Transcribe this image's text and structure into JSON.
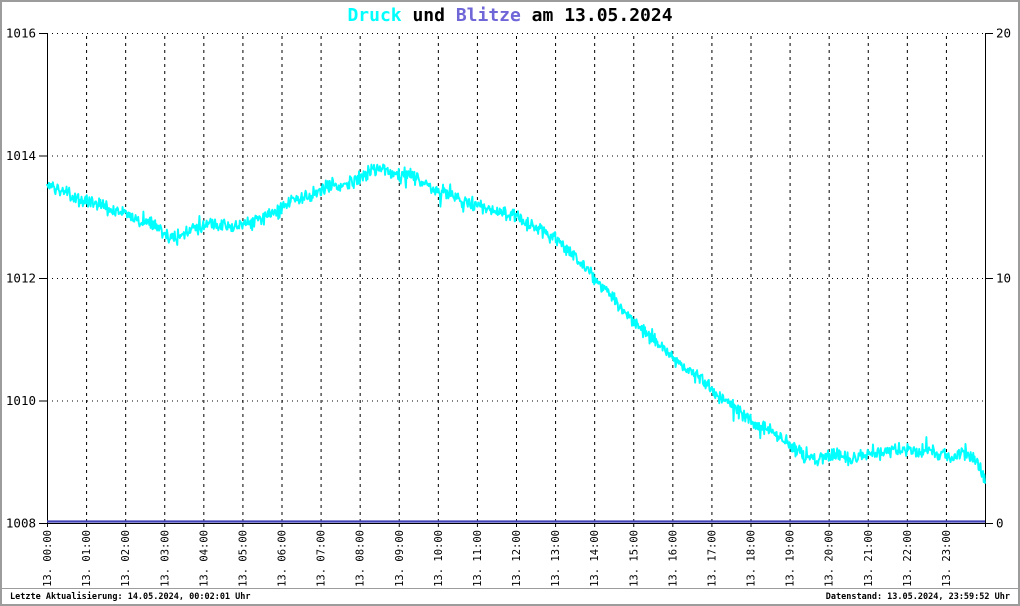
{
  "title": {
    "parts": [
      {
        "text": "Druck",
        "color": "#00ffff"
      },
      {
        "text": " und ",
        "color": "#000000"
      },
      {
        "text": "Blitze",
        "color": "#6f66d8"
      },
      {
        "text": " am 13.05.2024",
        "color": "#000000"
      }
    ]
  },
  "footer": {
    "left": "Letzte Aktualisierung: 14.05.2024, 00:02:01 Uhr",
    "right": "Datenstand: 13.05.2024, 23:59:52 Uhr"
  },
  "colors": {
    "druck_line": "#00ffff",
    "blitze_line": "#4343b8",
    "axis": "#000000",
    "frame_border": "#9c9c9c"
  },
  "chart_data": {
    "type": "line",
    "title": "Druck und Blitze am 13.05.2024",
    "left_axis": {
      "range": [
        1008,
        1016
      ],
      "ticks": [
        1008,
        1010,
        1012,
        1014,
        1016
      ]
    },
    "right_axis": {
      "range": [
        0,
        20
      ],
      "ticks": [
        0,
        10,
        20
      ]
    },
    "x_axis": {
      "hours_span": [
        0,
        24
      ],
      "tick_labels": [
        "13. 00:00",
        "13. 01:00",
        "13. 02:00",
        "13. 03:00",
        "13. 04:00",
        "13. 05:00",
        "13. 06:00",
        "13. 07:00",
        "13. 08:00",
        "13. 09:00",
        "13. 10:00",
        "13. 11:00",
        "13. 12:00",
        "13. 13:00",
        "13. 14:00",
        "13. 15:00",
        "13. 16:00",
        "13. 17:00",
        "13. 18:00",
        "13. 19:00",
        "13. 20:00",
        "13. 21:00",
        "13. 22:00",
        "13. 23:00"
      ]
    },
    "grid": {
      "horizontal": "dotted",
      "vertical": "dashed"
    },
    "series": [
      {
        "name": "Druck",
        "axis": "left",
        "color": "#00ffff",
        "x_start_hour": 0,
        "x_step_hours": 0.25,
        "values": [
          1013.5,
          1013.45,
          1013.4,
          1013.3,
          1013.25,
          1013.2,
          1013.15,
          1013.1,
          1013.05,
          1012.95,
          1012.9,
          1012.9,
          1012.75,
          1012.65,
          1012.7,
          1012.8,
          1012.85,
          1012.9,
          1012.85,
          1012.85,
          1012.9,
          1012.9,
          1012.95,
          1013.05,
          1013.15,
          1013.25,
          1013.3,
          1013.35,
          1013.4,
          1013.55,
          1013.5,
          1013.55,
          1013.65,
          1013.75,
          1013.8,
          1013.75,
          1013.7,
          1013.7,
          1013.6,
          1013.5,
          1013.4,
          1013.35,
          1013.3,
          1013.25,
          1013.2,
          1013.15,
          1013.1,
          1013.05,
          1013.0,
          1012.9,
          1012.8,
          1012.75,
          1012.65,
          1012.5,
          1012.35,
          1012.15,
          1012.0,
          1011.85,
          1011.65,
          1011.45,
          1011.3,
          1011.15,
          1011.0,
          1010.85,
          1010.7,
          1010.55,
          1010.45,
          1010.35,
          1010.2,
          1010.05,
          1009.95,
          1009.8,
          1009.7,
          1009.6,
          1009.5,
          1009.4,
          1009.3,
          1009.15,
          1009.05,
          1009.05,
          1009.1,
          1009.1,
          1009.05,
          1009.1,
          1009.15,
          1009.1,
          1009.15,
          1009.2,
          1009.2,
          1009.15,
          1009.2,
          1009.15,
          1009.1,
          1009.1,
          1009.15,
          1009.05,
          1008.7
        ],
        "noise": {
          "seed": 20240513,
          "amplitude": 0.13
        }
      },
      {
        "name": "Blitze",
        "axis": "right",
        "color": "#4343b8",
        "constant_value": 0
      }
    ]
  }
}
